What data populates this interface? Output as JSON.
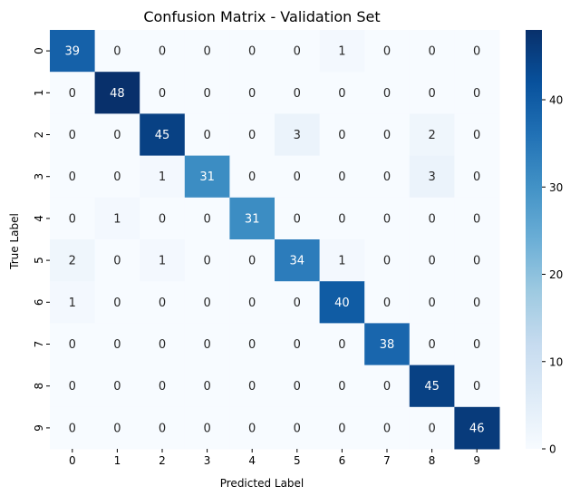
{
  "chart_data": {
    "type": "heatmap",
    "title": "Confusion Matrix - Validation Set",
    "xlabel": "Predicted Label",
    "ylabel": "True Label",
    "x_categories": [
      "0",
      "1",
      "2",
      "3",
      "4",
      "5",
      "6",
      "7",
      "8",
      "9"
    ],
    "y_categories": [
      "0",
      "1",
      "2",
      "3",
      "4",
      "5",
      "6",
      "7",
      "8",
      "9"
    ],
    "values": [
      [
        39,
        0,
        0,
        0,
        0,
        0,
        1,
        0,
        0,
        0
      ],
      [
        0,
        48,
        0,
        0,
        0,
        0,
        0,
        0,
        0,
        0
      ],
      [
        0,
        0,
        45,
        0,
        0,
        3,
        0,
        0,
        2,
        0
      ],
      [
        0,
        0,
        1,
        31,
        0,
        0,
        0,
        0,
        3,
        0
      ],
      [
        0,
        1,
        0,
        0,
        31,
        0,
        0,
        0,
        0,
        0
      ],
      [
        2,
        0,
        1,
        0,
        0,
        34,
        1,
        0,
        0,
        0
      ],
      [
        1,
        0,
        0,
        0,
        0,
        0,
        40,
        0,
        0,
        0
      ],
      [
        0,
        0,
        0,
        0,
        0,
        0,
        0,
        38,
        0,
        0
      ],
      [
        0,
        0,
        0,
        0,
        0,
        0,
        0,
        0,
        45,
        0
      ],
      [
        0,
        0,
        0,
        0,
        0,
        0,
        0,
        0,
        0,
        46
      ]
    ],
    "colormap": "Blues",
    "value_range": [
      0,
      48
    ],
    "colorbar": {
      "ticks": [
        0,
        10,
        20,
        30,
        40
      ],
      "tick_labels": [
        "0",
        "10",
        "20",
        "30",
        "40"
      ]
    },
    "annotate_cells": true,
    "grid": false
  }
}
